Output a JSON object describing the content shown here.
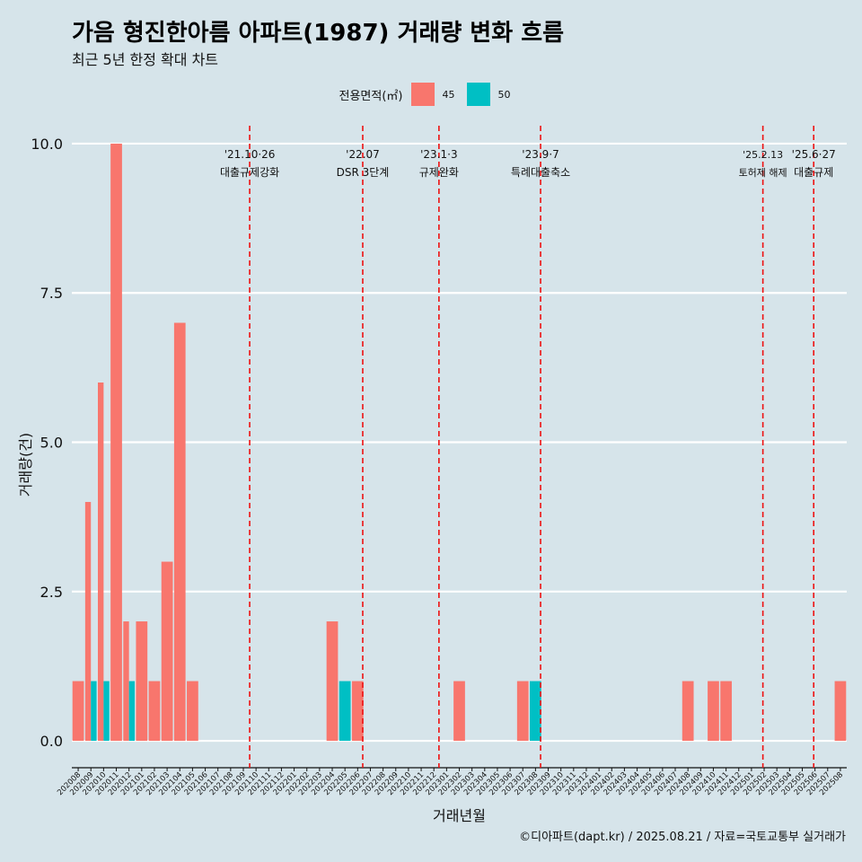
{
  "title": "가음 형진한아름 아파트(1987) 거래량 변화 흐름",
  "subtitle": "최근 5년 한정 확대 차트",
  "caption": "©디아파트(dapt.kr) / 2025.08.21 / 자료=국토교통부 실거래가",
  "legend": {
    "title": "전용면적(㎡)",
    "items": [
      {
        "label": "45",
        "color": "#f8766d"
      },
      {
        "label": "50",
        "color": "#00bfc4"
      }
    ]
  },
  "chart_data": {
    "type": "bar",
    "title": "가음 형진한아름 아파트(1987) 거래량 변화 흐름",
    "subtitle": "최근 5년 한정 확대 차트",
    "xlabel": "거래년월",
    "ylabel": "거래량(건)",
    "ylim": [
      -0.45,
      10.3
    ],
    "yticks": [
      0.0,
      2.5,
      5.0,
      7.5,
      10.0
    ],
    "ytick_labels": [
      "0.0",
      "2.5",
      "5.0",
      "7.5",
      "10.0"
    ],
    "grid": true,
    "legend_position": "top",
    "categories": [
      "202008",
      "202009",
      "202010",
      "202011",
      "202012",
      "202101",
      "202102",
      "202103",
      "202104",
      "202105",
      "202106",
      "202107",
      "202108",
      "202109",
      "202110",
      "202111",
      "202112",
      "202201",
      "202202",
      "202203",
      "202204",
      "202205",
      "202206",
      "202207",
      "202208",
      "202209",
      "202210",
      "202211",
      "202212",
      "202301",
      "202302",
      "202303",
      "202304",
      "202305",
      "202306",
      "202307",
      "202308",
      "202309",
      "202310",
      "202311",
      "202312",
      "202401",
      "202402",
      "202403",
      "202404",
      "202405",
      "202406",
      "202407",
      "202408",
      "202409",
      "202410",
      "202411",
      "202412",
      "202501",
      "202502",
      "202503",
      "202504",
      "202505",
      "202506",
      "202507",
      "202508"
    ],
    "series": [
      {
        "name": "45",
        "color": "#f8766d",
        "values": [
          1,
          4,
          6,
          10,
          2,
          2,
          1,
          3,
          7,
          1,
          0,
          0,
          0,
          0,
          0,
          0,
          0,
          0,
          0,
          0,
          2,
          0,
          1,
          0,
          0,
          0,
          0,
          0,
          0,
          0,
          1,
          0,
          0,
          0,
          0,
          1,
          0,
          0,
          0,
          0,
          0,
          0,
          0,
          0,
          0,
          0,
          0,
          0,
          1,
          0,
          1,
          1,
          0,
          0,
          0,
          0,
          0,
          0,
          0,
          0,
          1
        ]
      },
      {
        "name": "50",
        "color": "#00bfc4",
        "values": [
          0,
          1,
          1,
          0,
          1,
          0,
          0,
          0,
          0,
          0,
          0,
          0,
          0,
          0,
          0,
          0,
          0,
          0,
          0,
          0,
          0,
          1,
          0,
          0,
          0,
          0,
          0,
          0,
          0,
          0,
          0,
          0,
          0,
          0,
          0,
          0,
          1,
          0,
          0,
          0,
          0,
          0,
          0,
          0,
          0,
          0,
          0,
          0,
          0,
          0,
          0,
          0,
          0,
          0,
          0,
          0,
          0,
          0,
          0,
          0,
          0
        ]
      }
    ],
    "annotations": [
      {
        "x": 14.0,
        "date": "'21.10·26",
        "text": "대출규제강화"
      },
      {
        "x": 22.9,
        "date": "'22.07",
        "text": "DSR 3단계"
      },
      {
        "x": 28.9,
        "date": "'23.1·3",
        "text": "규제완화"
      },
      {
        "x": 36.9,
        "date": "'23.9·7",
        "text": "특례대출축소"
      },
      {
        "x": 54.4,
        "date": "'25.2.13",
        "text": "토허제 해제"
      },
      {
        "x": 58.4,
        "date": "'25.6·27",
        "text": "대출규제"
      }
    ]
  }
}
